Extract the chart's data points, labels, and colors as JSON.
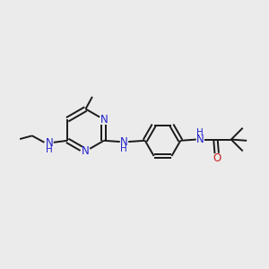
{
  "bg_color": "#ebebeb",
  "bond_color": "#1a1a1a",
  "N_color": "#2020cc",
  "O_color": "#cc2020",
  "C_color": "#1a1a1a",
  "line_width": 1.4,
  "font_size": 8.5,
  "figsize": [
    3.0,
    3.0
  ],
  "dpi": 100,
  "xlim": [
    0,
    12
  ],
  "ylim": [
    0,
    12
  ]
}
